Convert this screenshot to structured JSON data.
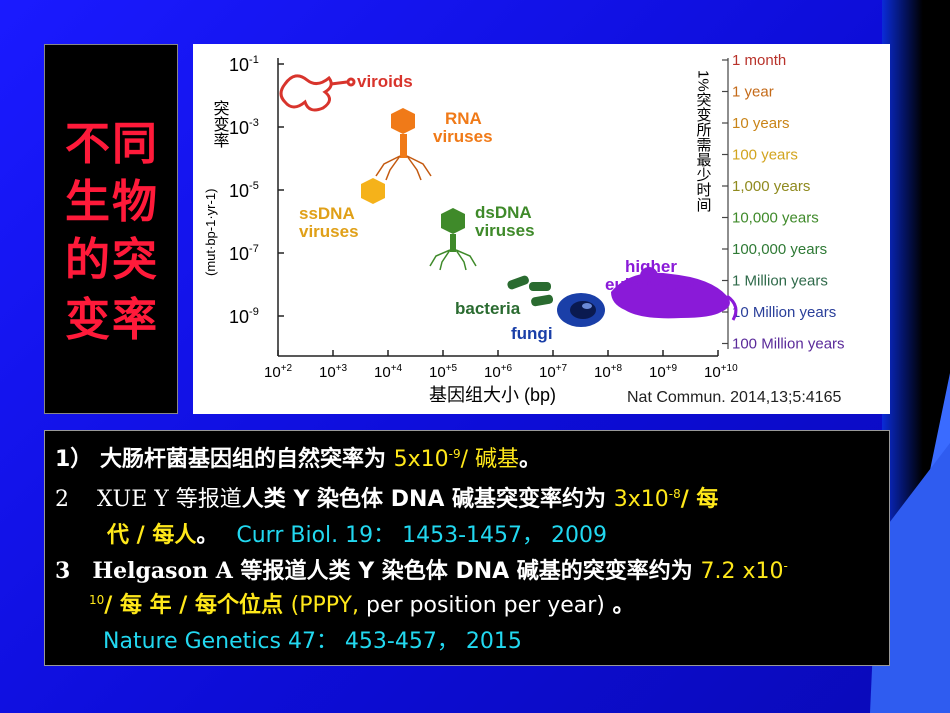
{
  "side_title": {
    "line1": "不同",
    "line2": "生物",
    "line3": "的突",
    "line4": "变率"
  },
  "figure": {
    "y_axis_label": "突变率",
    "y_unit": "(mut·bp-1·yr-1)",
    "y_ticks": [
      {
        "base": "10",
        "exp": "-1"
      },
      {
        "base": "10",
        "exp": "-3"
      },
      {
        "base": "10",
        "exp": "-5"
      },
      {
        "base": "10",
        "exp": "-7"
      },
      {
        "base": "10",
        "exp": "-9"
      }
    ],
    "x_ticks": [
      {
        "base": "10",
        "exp": "+2"
      },
      {
        "base": "10",
        "exp": "+3"
      },
      {
        "base": "10",
        "exp": "+4"
      },
      {
        "base": "10",
        "exp": "+5"
      },
      {
        "base": "10",
        "exp": "+6"
      },
      {
        "base": "10",
        "exp": "+7"
      },
      {
        "base": "10",
        "exp": "+8"
      },
      {
        "base": "10",
        "exp": "+9"
      },
      {
        "base": "10",
        "exp": "+10"
      }
    ],
    "x_axis_label": "基因组大小 (bp)",
    "citation": "Nat Commun. 2014,13;5:4165",
    "right_axis_label": "1%突变所需最少时间",
    "right_ticks": [
      {
        "label": "1 month",
        "color": "#b8322a"
      },
      {
        "label": "1 year",
        "color": "#c46a18"
      },
      {
        "label": "10 years",
        "color": "#c98418"
      },
      {
        "label": "100 years",
        "color": "#d2a41e"
      },
      {
        "label": "1,000 years",
        "color": "#8f8a1e"
      },
      {
        "label": "10,000 years",
        "color": "#3f8a2a"
      },
      {
        "label": "100,000 years",
        "color": "#2f7a35"
      },
      {
        "label": "1 Million years",
        "color": "#2f6a4a"
      },
      {
        "label": "10 Million years",
        "color": "#2a3f9a"
      },
      {
        "label": "100 Million years",
        "color": "#5a2a9a"
      }
    ],
    "groups": {
      "viroids": "viroids",
      "rna_1": "RNA",
      "rna_2": "viruses",
      "ssdna_1": "ssDNA",
      "ssdna_2": "viruses",
      "dsdna_1": "dsDNA",
      "dsdna_2": "viruses",
      "bacteria": "bacteria",
      "fungi": "fungi",
      "higher_1": "higher",
      "higher_2": "eukaryotes"
    },
    "colors": {
      "viroids": "#d8342c",
      "rna": "#f07a18",
      "ssdna": "#f5b21a",
      "dsdna": "#3f8a2a",
      "bacteria": "#2a6b30",
      "fungi": "#1a3fa8",
      "higher": "#8a1ad8"
    }
  },
  "text": {
    "l1_a": "1） 大肠杆菌基因组的自然突率为 ",
    "l1_b": "5x10",
    "l1_sup": "-9",
    "l1_c": "/ 碱基",
    "l1_d": "。",
    "l2_num": "2",
    "l2_a": "XUE Y",
    "l2_b": " 等报道",
    "l2_c": "人类 Y 染色体 DNA 碱基突变率约为 ",
    "l2_d": "3x10",
    "l2_sup": "-8",
    "l2_e": "/ 每",
    "l3_a": "代 / 每人",
    "l3_b": "。",
    "l3_c": "Curr Biol.  19：  1453-1457，  2009",
    "l4_num": "3",
    "l4_a": "Helgason A",
    "l4_b": " 等报道人类 Y 染色体 DNA 碱基的突变率约为 ",
    "l4_c": "7.2  x10",
    "l4_sup1": "-",
    "l5_sup": "10",
    "l5_a": "/ 每 年 / 每个位点 ",
    "l5_b": "(PPPY,",
    "l5_c": "  per  position per year)",
    "l5_d": "      。",
    "l6": "Nature Genetics 47：  453-457，  2015"
  }
}
